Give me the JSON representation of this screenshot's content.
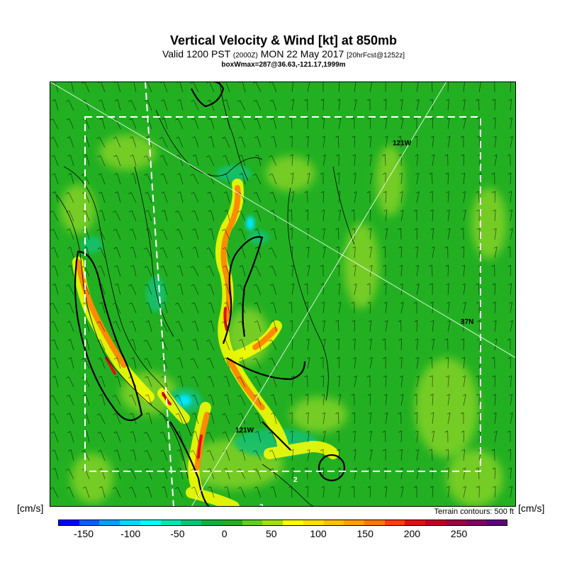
{
  "header": {
    "title": "Vertical Velocity & Wind [kt] at 850mb",
    "valid_prefix": "Valid 1200 PST",
    "valid_utc": "(2000Z)",
    "valid_date": "MON 22 May 2017",
    "forecast": "[20hrFcst@1252z]",
    "boxwmax": "boxWmax=287@36.63,-121.17,1999m"
  },
  "map": {
    "labels": {
      "lon_top": "121W",
      "lon_bottom": "121W",
      "lat": "37N",
      "contour_2a": "2",
      "contour_2b": "2"
    },
    "colors": {
      "background": "#22b022",
      "light_green": "#7ed026",
      "teal": "#18c070",
      "yellow": "#ffff00",
      "orange": "#ff8000",
      "red": "#e01010",
      "cyan": "#00e8ff"
    }
  },
  "legend": {
    "unit_left": "[cm/s]",
    "unit_right": "[cm/s]",
    "terrain_note": "Terrain contours: 500 ft",
    "tick_labels": [
      "-150",
      "-100",
      "-50",
      "0",
      "50",
      "100",
      "150",
      "200",
      "250"
    ],
    "colors": [
      "#0000ff",
      "#0060ff",
      "#00a0ff",
      "#00d8ff",
      "#00ffff",
      "#00e8b0",
      "#00c878",
      "#10b040",
      "#22b022",
      "#60d020",
      "#a0e010",
      "#ffff00",
      "#ffe000",
      "#ffc000",
      "#ffa000",
      "#ff7800",
      "#ff4000",
      "#e01010",
      "#c00020",
      "#a00040",
      "#800060",
      "#600080"
    ]
  }
}
